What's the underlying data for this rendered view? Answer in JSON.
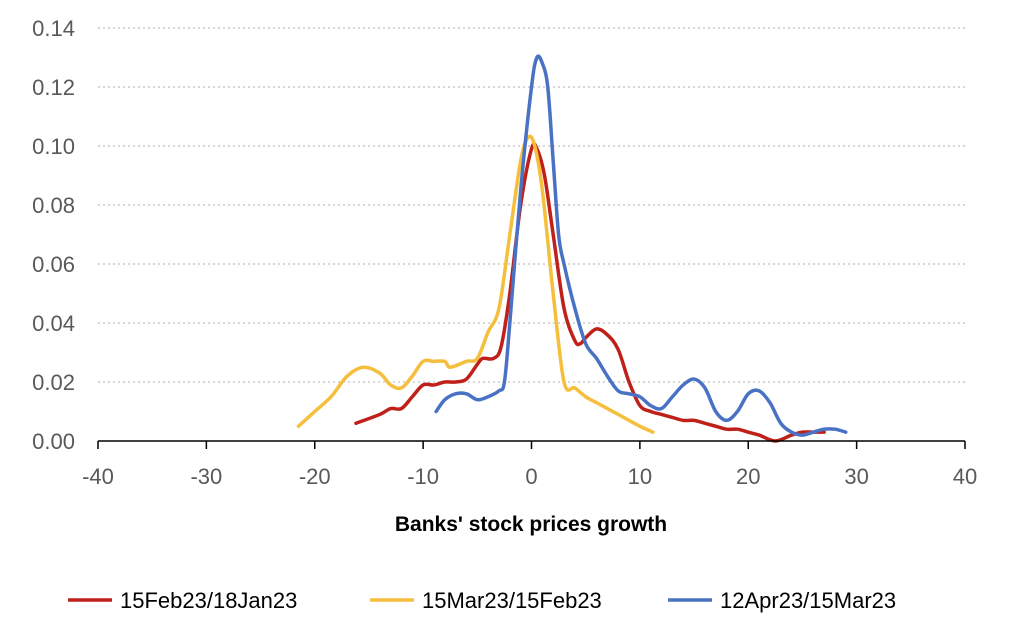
{
  "chart_data": {
    "type": "line",
    "title": "",
    "xlabel": "Banks' stock prices growth",
    "ylabel": "",
    "xlim": [
      -40,
      40
    ],
    "ylim": [
      0,
      0.14
    ],
    "x_ticks": [
      "-40",
      "-30",
      "-20",
      "-10",
      "0",
      "10",
      "20",
      "30",
      "40"
    ],
    "x_tick_values": [
      -40,
      -30,
      -20,
      -10,
      0,
      10,
      20,
      30,
      40
    ],
    "y_ticks": [
      "0.00",
      "0.02",
      "0.04",
      "0.06",
      "0.08",
      "0.10",
      "0.12",
      "0.14"
    ],
    "y_tick_values": [
      0,
      0.02,
      0.04,
      0.06,
      0.08,
      0.1,
      0.12,
      0.14
    ],
    "grid": "horizontal dotted",
    "legend_position": "bottom",
    "series": [
      {
        "name": "15Feb23/18Jan23",
        "color": "#C0201A",
        "points": [
          [
            -16.2,
            0.006
          ],
          [
            -14,
            0.009
          ],
          [
            -13,
            0.011
          ],
          [
            -12,
            0.011
          ],
          [
            -11,
            0.015
          ],
          [
            -10,
            0.019
          ],
          [
            -9,
            0.019
          ],
          [
            -8,
            0.02
          ],
          [
            -7,
            0.02
          ],
          [
            -6,
            0.021
          ],
          [
            -5,
            0.026
          ],
          [
            -4.5,
            0.028
          ],
          [
            -3.5,
            0.028
          ],
          [
            -2.8,
            0.032
          ],
          [
            -2,
            0.05
          ],
          [
            -1,
            0.08
          ],
          [
            0,
            0.099
          ],
          [
            0.5,
            0.099
          ],
          [
            1.2,
            0.09
          ],
          [
            2,
            0.07
          ],
          [
            3,
            0.045
          ],
          [
            4,
            0.034
          ],
          [
            4.5,
            0.033
          ],
          [
            5,
            0.035
          ],
          [
            6,
            0.038
          ],
          [
            7,
            0.036
          ],
          [
            8,
            0.031
          ],
          [
            9,
            0.02
          ],
          [
            10,
            0.012
          ],
          [
            11,
            0.01
          ],
          [
            12,
            0.009
          ],
          [
            13,
            0.008
          ],
          [
            14,
            0.007
          ],
          [
            15,
            0.007
          ],
          [
            16,
            0.006
          ],
          [
            17,
            0.005
          ],
          [
            18,
            0.004
          ],
          [
            19,
            0.004
          ],
          [
            20,
            0.003
          ],
          [
            21,
            0.002
          ],
          [
            22.5,
            0.0
          ],
          [
            24,
            0.002
          ],
          [
            25,
            0.003
          ],
          [
            26,
            0.003
          ],
          [
            27,
            0.003
          ]
        ]
      },
      {
        "name": "15Mar23/15Feb23",
        "color": "#F5BE3C",
        "points": [
          [
            -21.5,
            0.005
          ],
          [
            -20,
            0.01
          ],
          [
            -18.5,
            0.015
          ],
          [
            -17,
            0.022
          ],
          [
            -15.5,
            0.025
          ],
          [
            -14,
            0.023
          ],
          [
            -13,
            0.019
          ],
          [
            -12,
            0.018
          ],
          [
            -11,
            0.022
          ],
          [
            -10,
            0.027
          ],
          [
            -9,
            0.027
          ],
          [
            -8,
            0.027
          ],
          [
            -7.5,
            0.025
          ],
          [
            -6,
            0.027
          ],
          [
            -5,
            0.028
          ],
          [
            -4,
            0.037
          ],
          [
            -3,
            0.045
          ],
          [
            -2,
            0.07
          ],
          [
            -1,
            0.095
          ],
          [
            -0.3,
            0.103
          ],
          [
            0.3,
            0.1
          ],
          [
            1,
            0.085
          ],
          [
            2,
            0.05
          ],
          [
            3,
            0.02
          ],
          [
            4,
            0.018
          ],
          [
            5,
            0.015
          ],
          [
            6,
            0.013
          ],
          [
            7,
            0.011
          ],
          [
            8,
            0.009
          ],
          [
            9,
            0.007
          ],
          [
            10,
            0.005
          ],
          [
            11.2,
            0.003
          ]
        ]
      },
      {
        "name": "12Apr23/15Mar23",
        "color": "#4A72C4",
        "points": [
          [
            -8.8,
            0.01
          ],
          [
            -8,
            0.014
          ],
          [
            -7,
            0.016
          ],
          [
            -6,
            0.016
          ],
          [
            -5,
            0.014
          ],
          [
            -4,
            0.015
          ],
          [
            -3,
            0.017
          ],
          [
            -2.5,
            0.02
          ],
          [
            -2,
            0.04
          ],
          [
            -1,
            0.085
          ],
          [
            0,
            0.12
          ],
          [
            0.5,
            0.13
          ],
          [
            1,
            0.128
          ],
          [
            1.5,
            0.12
          ],
          [
            2,
            0.095
          ],
          [
            2.5,
            0.07
          ],
          [
            3,
            0.06
          ],
          [
            4,
            0.045
          ],
          [
            5,
            0.033
          ],
          [
            6,
            0.028
          ],
          [
            7,
            0.022
          ],
          [
            8,
            0.017
          ],
          [
            9,
            0.016
          ],
          [
            10,
            0.015
          ],
          [
            11,
            0.012
          ],
          [
            12,
            0.011
          ],
          [
            13,
            0.015
          ],
          [
            14,
            0.019
          ],
          [
            15,
            0.021
          ],
          [
            16,
            0.018
          ],
          [
            17,
            0.01
          ],
          [
            18,
            0.007
          ],
          [
            19,
            0.01
          ],
          [
            20,
            0.016
          ],
          [
            21,
            0.017
          ],
          [
            22,
            0.013
          ],
          [
            23,
            0.006
          ],
          [
            24,
            0.003
          ],
          [
            25,
            0.002
          ],
          [
            26,
            0.003
          ],
          [
            27,
            0.004
          ],
          [
            28,
            0.004
          ],
          [
            29,
            0.003
          ]
        ]
      }
    ]
  }
}
